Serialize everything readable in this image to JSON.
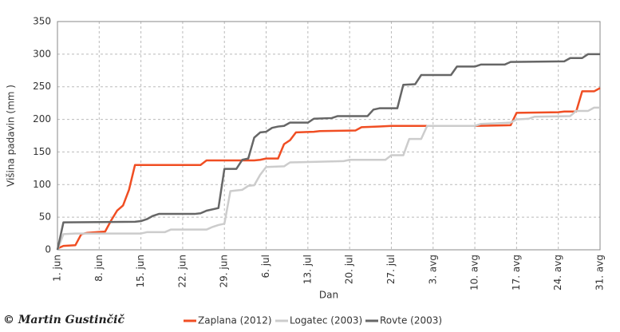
{
  "chart_data": {
    "type": "line",
    "x_label": "Dan",
    "y_label": "Višina padavin (mm )",
    "credit": "© Martin Gustinčič",
    "xlim": [
      0,
      91
    ],
    "xticks": [
      {
        "value": 0,
        "label": "1. jun"
      },
      {
        "value": 7,
        "label": "8. jun"
      },
      {
        "value": 14,
        "label": "15. jun"
      },
      {
        "value": 21,
        "label": "22. jun"
      },
      {
        "value": 28,
        "label": "29. jun"
      },
      {
        "value": 35,
        "label": "6. jul"
      },
      {
        "value": 42,
        "label": "13. jul"
      },
      {
        "value": 49,
        "label": "20. jul"
      },
      {
        "value": 56,
        "label": "27. jul"
      },
      {
        "value": 63,
        "label": "3. avg"
      },
      {
        "value": 70,
        "label": "10. avg"
      },
      {
        "value": 77,
        "label": "17. avg"
      },
      {
        "value": 84,
        "label": "24. avg"
      },
      {
        "value": 91,
        "label": "31. avg"
      }
    ],
    "ylim": [
      0,
      350
    ],
    "yticks": [
      0,
      50,
      100,
      150,
      200,
      250,
      300,
      350
    ],
    "grid": true,
    "legend": "bottom",
    "series": [
      {
        "name": "Zaplana (2012)",
        "color": "#f04e23",
        "x": [
          0,
          1,
          3,
          4,
          5,
          8,
          9,
          10,
          11,
          12,
          13,
          24,
          25,
          33,
          34,
          35,
          37,
          38,
          39,
          40,
          43,
          44,
          50,
          51,
          54,
          56,
          70,
          76,
          77,
          84,
          85,
          87,
          88,
          90,
          91
        ],
        "values": [
          2,
          6,
          7,
          24,
          26,
          28,
          45,
          60,
          68,
          92,
          130,
          130,
          137,
          137,
          138,
          140,
          140,
          162,
          168,
          180,
          181,
          182,
          183,
          188,
          189,
          190,
          190,
          191,
          210,
          211,
          212,
          212,
          243,
          243,
          248
        ]
      },
      {
        "name": "Logatec (2003)",
        "color": "#cccccc",
        "x": [
          0,
          1,
          3,
          14,
          15,
          18,
          19,
          25,
          26,
          27,
          28,
          29,
          30,
          31,
          32,
          33,
          34,
          35,
          38,
          39,
          44,
          48,
          49,
          55,
          56,
          58,
          59,
          61,
          62,
          70,
          71,
          76,
          77,
          79,
          80,
          86,
          87,
          89,
          90,
          91
        ],
        "values": [
          0,
          24,
          25,
          25,
          27,
          27,
          31,
          31,
          35,
          38,
          40,
          90,
          91,
          92,
          98,
          99,
          115,
          127,
          128,
          134,
          135,
          136,
          138,
          138,
          145,
          145,
          170,
          170,
          190,
          190,
          193,
          195,
          200,
          201,
          204,
          205,
          213,
          213,
          218,
          218
        ]
      },
      {
        "name": "Rovte (2003)",
        "color": "#666666",
        "x": [
          0,
          1,
          13,
          14,
          15,
          16,
          17,
          23,
          24,
          25,
          27,
          28,
          30,
          31,
          32,
          33,
          34,
          35,
          36,
          37,
          38,
          39,
          42,
          43,
          46,
          47,
          52,
          53,
          54,
          57,
          58,
          60,
          61,
          66,
          67,
          70,
          71,
          75,
          76,
          85,
          86,
          88,
          89,
          91
        ],
        "values": [
          0,
          42,
          43,
          44,
          47,
          52,
          55,
          55,
          56,
          60,
          64,
          124,
          124,
          138,
          140,
          172,
          180,
          181,
          187,
          189,
          190,
          195,
          195,
          201,
          202,
          205,
          205,
          215,
          217,
          217,
          253,
          254,
          268,
          268,
          281,
          281,
          284,
          284,
          288,
          289,
          294,
          294,
          300,
          300
        ]
      }
    ]
  }
}
